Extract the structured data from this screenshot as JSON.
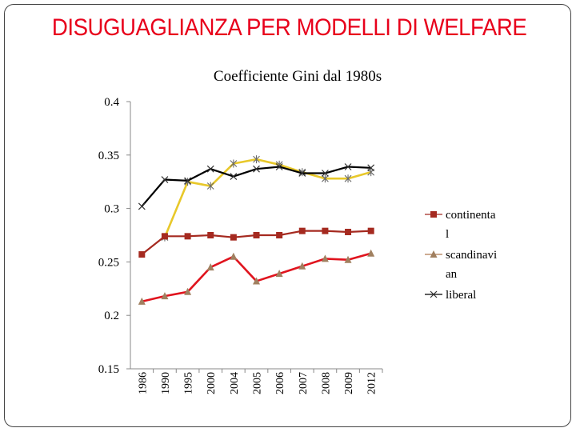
{
  "slide": {
    "title": "DISUGUAGLIANZA PER MODELLI DI WELFARE"
  },
  "chart_data": {
    "type": "line",
    "title": "Coefficiente Gini dal 1980s",
    "xlabel": "",
    "ylabel": "",
    "categories": [
      "1986",
      "1990",
      "1995",
      "2000",
      "2004",
      "2005",
      "2006",
      "2007",
      "2008",
      "2009",
      "2012"
    ],
    "yticks": [
      "0.4",
      "0.35",
      "0.3",
      "0.25",
      "0.2",
      "0.15"
    ],
    "ylim": [
      0.15,
      0.4
    ],
    "grid": false,
    "legend_position": "right",
    "series": [
      {
        "name_lines": [
          "continenta",
          "l"
        ],
        "color": "#a52a20",
        "marker": "square",
        "values": [
          0.257,
          0.274,
          0.274,
          0.275,
          0.273,
          0.275,
          0.275,
          0.279,
          0.279,
          0.278,
          0.279
        ]
      },
      {
        "name_lines": [
          "scandinavi",
          "an"
        ],
        "color": "#e0141e",
        "marker_color": "#a08060",
        "marker": "triangle",
        "values": [
          0.213,
          0.218,
          0.222,
          0.245,
          0.255,
          0.232,
          0.239,
          0.246,
          0.253,
          0.252,
          0.258
        ]
      },
      {
        "name_lines": [
          "liberal"
        ],
        "color": "#000000",
        "marker": "x",
        "values": [
          0.302,
          0.327,
          0.326,
          0.337,
          0.33,
          0.337,
          0.339,
          0.333,
          0.333,
          0.339,
          0.338
        ]
      },
      {
        "name_lines": [],
        "color": "#e8c82a",
        "marker": "star",
        "values": [
          null,
          0.273,
          0.325,
          0.321,
          0.342,
          0.346,
          0.341,
          0.334,
          0.328,
          0.328,
          0.334
        ]
      }
    ]
  }
}
